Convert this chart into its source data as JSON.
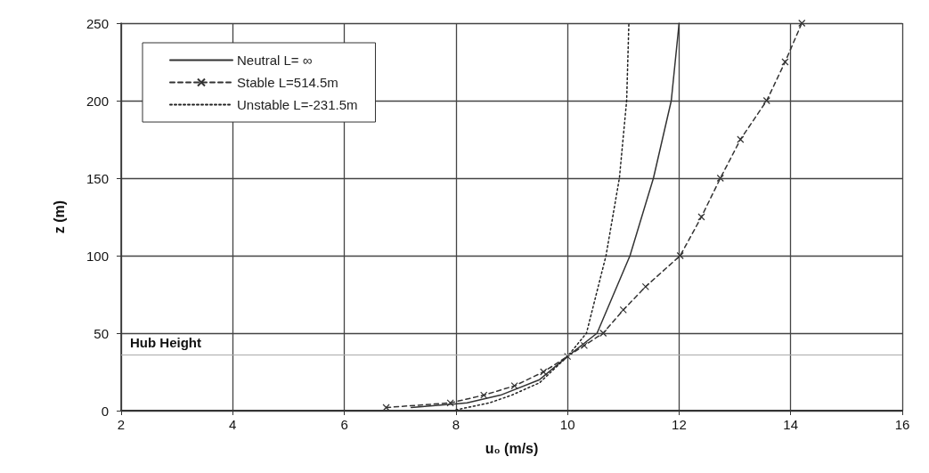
{
  "chart_data": {
    "type": "line",
    "xlabel": "u₀ (m/s)",
    "ylabel": "z (m)",
    "xlim": [
      2,
      16
    ],
    "xticks": [
      2,
      4,
      6,
      8,
      10,
      12,
      14,
      16
    ],
    "ylim": [
      0,
      250
    ],
    "yticks": [
      0,
      50,
      100,
      150,
      200,
      250
    ],
    "grid": true,
    "legend": "top left",
    "series": [
      {
        "name": "Neutral L= ∞",
        "color": "#333333",
        "line_style": "solid",
        "marker": "none",
        "x": [
          7.2,
          8.2,
          8.8,
          9.5,
          10,
          10.53,
          11.12,
          11.54,
          11.86,
          12
        ],
        "values": [
          2,
          5,
          10,
          20,
          35,
          50,
          100,
          150,
          200,
          250
        ]
      },
      {
        "name": "Stable L=514.5m",
        "color": "#333333",
        "line_style": "dashed",
        "marker": "cross",
        "x": [
          6.75,
          7.9,
          8.5,
          9.05,
          9.57,
          10,
          10.3,
          10.64,
          11.0,
          11.4,
          12.02,
          12.4,
          12.74,
          13.1,
          13.57,
          13.9,
          14.2
        ],
        "values": [
          2,
          5,
          10,
          16,
          25,
          35,
          42,
          50,
          65,
          80,
          100,
          125,
          150,
          175,
          200,
          225,
          250
        ]
      },
      {
        "name": "Unstable L=-231.5m",
        "color": "#222222",
        "line_style": "dotted",
        "marker": "none",
        "x": [
          8,
          8.6,
          9,
          9.5,
          10,
          10.34,
          10.69,
          10.93,
          11.06,
          11.1
        ],
        "values": [
          0.5,
          5,
          10,
          18,
          35,
          50,
          100,
          150,
          200,
          250
        ]
      }
    ],
    "ref_lines": [
      {
        "axis": "y",
        "value": 36,
        "label": "Hub Height",
        "color": "#aaaaaa"
      }
    ]
  }
}
